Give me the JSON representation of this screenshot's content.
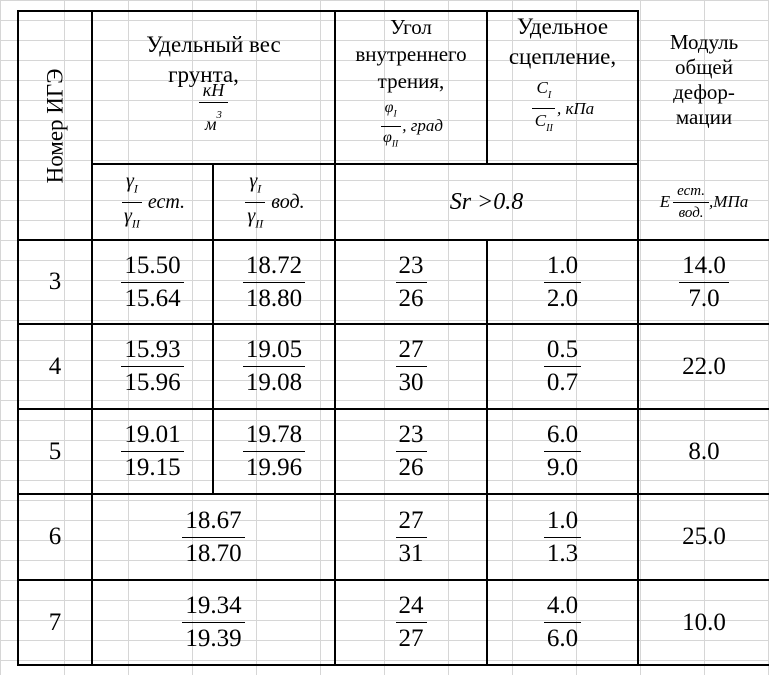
{
  "header": {
    "col1": "Номер ИГЭ",
    "col2_title_line1": "Удельный вес",
    "col2_title_line2": "грунта,",
    "col2_unit_num": "кН",
    "col2_unit_den": "м",
    "col2_unit_den_exp": "3",
    "sub_est_label": "ест.",
    "sub_vod_label": "вод.",
    "col3_line1": "Угол",
    "col3_line2": "внутреннего",
    "col3_line3": "трения,",
    "col3_unit": "град",
    "col4_line1": "Удельное",
    "col4_line2": "сцепление,",
    "col4_unit": "кПа",
    "col5_line1": "Модуль",
    "col5_line2": "общей",
    "col5_line3": "дефор-",
    "col5_line4": "мации",
    "col5_sub_E": "E",
    "col5_sub_num": "ест.",
    "col5_sub_den": "вод.",
    "col5_sub_unit": "МПа",
    "sr_condition": "Sr >0.8"
  },
  "symbols": {
    "gamma": "γ",
    "phi": "φ",
    "c": "C",
    "sub_I": "I",
    "sub_II": "II"
  },
  "rows": [
    {
      "ige": "3",
      "gamma_est_num": "15.50",
      "gamma_est_den": "15.64",
      "gamma_vod_num": "18.72",
      "gamma_vod_den": "18.80",
      "phi_num": "23",
      "phi_den": "26",
      "c_num": "1.0",
      "c_den": "2.0",
      "e_num": "14.0",
      "e_den": "7.0"
    },
    {
      "ige": "4",
      "gamma_est_num": "15.93",
      "gamma_est_den": "15.96",
      "gamma_vod_num": "19.05",
      "gamma_vod_den": "19.08",
      "phi_num": "27",
      "phi_den": "30",
      "c_num": "0.5",
      "c_den": "0.7",
      "e": "22.0"
    },
    {
      "ige": "5",
      "gamma_est_num": "19.01",
      "gamma_est_den": "19.15",
      "gamma_vod_num": "19.78",
      "gamma_vod_den": "19.96",
      "phi_num": "23",
      "phi_den": "26",
      "c_num": "6.0",
      "c_den": "9.0",
      "e": "8.0"
    },
    {
      "ige": "6",
      "gamma_num": "18.67",
      "gamma_den": "18.70",
      "phi_num": "27",
      "phi_den": "31",
      "c_num": "1.0",
      "c_den": "1.3",
      "e": "25.0"
    },
    {
      "ige": "7",
      "gamma_num": "19.34",
      "gamma_den": "19.39",
      "phi_num": "24",
      "phi_den": "27",
      "c_num": "4.0",
      "c_den": "6.0",
      "e": "10.0"
    }
  ]
}
